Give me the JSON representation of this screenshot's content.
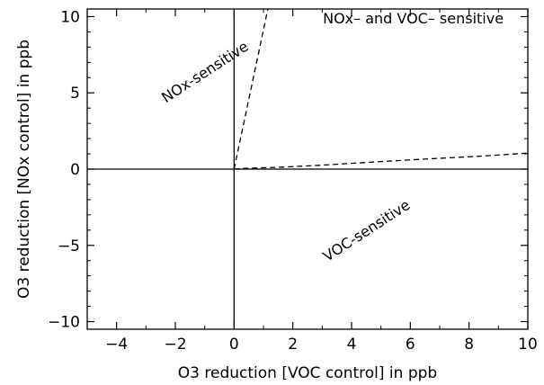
{
  "chart_data": {
    "type": "line",
    "title": "",
    "xlabel": "O3 reduction [VOC control] in ppb",
    "ylabel": "O3 reduction [NOx control] in ppb",
    "xlim": [
      -5,
      10
    ],
    "ylim": [
      -10.5,
      10.5
    ],
    "x_ticks": [
      -4,
      -2,
      0,
      2,
      4,
      6,
      8,
      10
    ],
    "y_ticks": [
      -10,
      -5,
      0,
      5,
      10
    ],
    "x_tick_labels": [
      "−4",
      "−2",
      "0",
      "2",
      "4",
      "6",
      "8",
      "10"
    ],
    "y_tick_labels": [
      "−10",
      "−5",
      "0",
      "5",
      "10"
    ],
    "grid": false,
    "reference_lines": [
      {
        "orientation": "vertical",
        "x": 0
      },
      {
        "orientation": "horizontal",
        "y": 0
      }
    ],
    "series": [
      {
        "style": "dashed",
        "x": [
          0,
          1.15
        ],
        "y": [
          0,
          10.5
        ]
      },
      {
        "style": "dashed",
        "x": [
          0,
          0.3,
          1.5,
          2.9,
          4.6,
          6.4,
          8.4,
          10
        ],
        "y": [
          0,
          0.05,
          0.12,
          0.25,
          0.45,
          0.65,
          0.85,
          1.05
        ]
      }
    ],
    "annotations": [
      {
        "text": "NOx-sensitive",
        "x": -0.9,
        "y": 6.1,
        "angle_deg": -33
      },
      {
        "text": "NOx– and VOC– sensitive",
        "x": 6.1,
        "y": 9.55,
        "angle_deg": 0
      },
      {
        "text": "VOC-sensitive",
        "x": 4.6,
        "y": -4.3,
        "angle_deg": -33
      }
    ]
  }
}
